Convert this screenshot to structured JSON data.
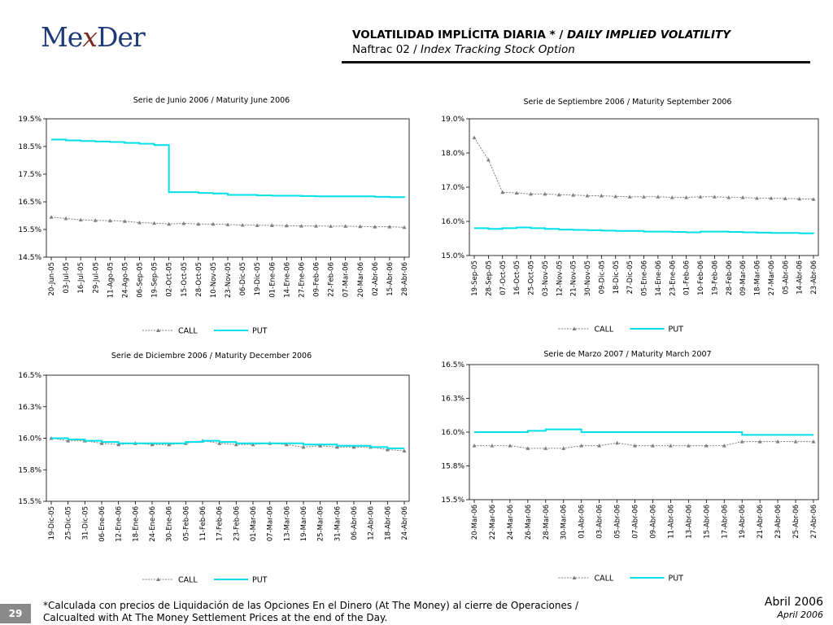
{
  "header": {
    "logo_text_left": "Me",
    "logo_text_x": "x",
    "logo_text_right": "Der",
    "title_es": "VOLATILIDAD IMPLÍCITA DIARIA * / ",
    "title_en": "DAILY IMPLIED VOLATILITY",
    "subtitle_es": "Naftrac 02 / ",
    "subtitle_en": "Index Tracking Stock Option"
  },
  "footer": {
    "note_line1": "*Calculada con precios de Liquidación de las Opciones En el Dinero (At The Money) al cierre de Operaciones /",
    "note_line2": "Calcualted with At The Money Settlement Prices at the end of the Day.",
    "page_number": "29",
    "date_es": "Abril 2006",
    "date_en": "April 2006"
  },
  "colors": {
    "call": "#7f7f7f",
    "put": "#00e0e8",
    "title_bar": "#111111"
  },
  "chart_data": [
    {
      "type": "line",
      "title": "Serie de Junio 2006 / Maturity June 2006",
      "categories": [
        "20-Jun-05",
        "03-Jul-05",
        "16-Jul-05",
        "29-Jul-05",
        "11-Ago-05",
        "24-Ago-05",
        "06-Sep-05",
        "19-Sep-05",
        "02-Oct-05",
        "15-Oct-05",
        "28-Oct-05",
        "10-Nov-05",
        "23-Nov-05",
        "06-Dic-05",
        "19-Dic-05",
        "01-Ene-06",
        "14-Ene-06",
        "27-Ene-06",
        "09-Feb-06",
        "22-Feb-06",
        "07-Mar-06",
        "20-Mar-06",
        "02-Abr-06",
        "15-Abr-06",
        "28-Abr-06"
      ],
      "y_ticks": [
        "14.5%",
        "15.5%",
        "16.5%",
        "17.5%",
        "18.5%",
        "19.5%"
      ],
      "ylim": [
        14.5,
        19.5
      ],
      "legend": [
        "CALL",
        "PUT"
      ],
      "series": [
        {
          "name": "CALL",
          "values": [
            15.95,
            15.9,
            15.85,
            15.83,
            15.82,
            15.8,
            15.75,
            15.73,
            15.7,
            15.72,
            15.7,
            15.7,
            15.68,
            15.66,
            15.65,
            15.65,
            15.64,
            15.63,
            15.63,
            15.62,
            15.62,
            15.61,
            15.6,
            15.6,
            15.58
          ]
        },
        {
          "name": "PUT",
          "values": [
            18.75,
            18.72,
            18.7,
            18.68,
            18.66,
            18.63,
            18.6,
            18.55,
            16.85,
            16.85,
            16.82,
            16.8,
            16.75,
            16.75,
            16.73,
            16.72,
            16.72,
            16.71,
            16.7,
            16.7,
            16.7,
            16.7,
            16.68,
            16.67,
            16.65
          ]
        }
      ]
    },
    {
      "type": "line",
      "title": "Serie de Septiembre 2006 / Maturity September 2006",
      "categories": [
        "19-Sep-05",
        "28-Sep-05",
        "07-Oct-05",
        "16-Oct-05",
        "25-Oct-05",
        "03-Nov-05",
        "12-Nov-05",
        "21-Nov-05",
        "30-Nov-05",
        "09-Dic-05",
        "18-Dic-05",
        "27-Dic-05",
        "05-Ene-06",
        "14-Ene-06",
        "23-Ene-06",
        "01-Feb-06",
        "10-Feb-06",
        "19-Feb-06",
        "28-Feb-06",
        "09-Mar-06",
        "18-Mar-06",
        "27-Mar-06",
        "05-Abr-06",
        "14-Abr-06",
        "23-Abr-06"
      ],
      "y_ticks": [
        "15.0%",
        "16.0%",
        "17.0%",
        "18.0%",
        "19.0%"
      ],
      "ylim": [
        15.0,
        19.0
      ],
      "legend": [
        "CALL",
        "PUT"
      ],
      "series": [
        {
          "name": "CALL",
          "values": [
            18.45,
            17.8,
            16.85,
            16.83,
            16.8,
            16.8,
            16.78,
            16.77,
            16.75,
            16.75,
            16.73,
            16.72,
            16.72,
            16.72,
            16.7,
            16.7,
            16.72,
            16.72,
            16.7,
            16.7,
            16.68,
            16.68,
            16.67,
            16.66,
            16.65
          ]
        },
        {
          "name": "PUT",
          "values": [
            15.8,
            15.78,
            15.8,
            15.82,
            15.8,
            15.78,
            15.76,
            15.75,
            15.74,
            15.73,
            15.72,
            15.72,
            15.7,
            15.7,
            15.69,
            15.68,
            15.7,
            15.7,
            15.69,
            15.68,
            15.67,
            15.66,
            15.66,
            15.65,
            15.64
          ]
        }
      ]
    },
    {
      "type": "line",
      "title": "Serie de Diciembre 2006 / Maturity December 2006",
      "categories": [
        "19-Dic-05",
        "25-Dic-05",
        "31-Dic-05",
        "06-Ene-06",
        "12-Ene-06",
        "18-Ene-06",
        "24-Ene-06",
        "30-Ene-06",
        "05-Feb-06",
        "11-Feb-06",
        "17-Feb-06",
        "23-Feb-06",
        "01-Mar-06",
        "07-Mar-06",
        "13-Mar-06",
        "19-Mar-06",
        "25-Mar-06",
        "31-Mar-06",
        "06-Abr-06",
        "12-Abr-06",
        "18-Abr-06",
        "24-Abr-06"
      ],
      "y_ticks": [
        "15.5%",
        "15.8%",
        "16.0%",
        "16.3%",
        "16.5%"
      ],
      "ylim": [
        15.5,
        16.5
      ],
      "legend": [
        "CALL",
        "PUT"
      ],
      "series": [
        {
          "name": "CALL",
          "values": [
            16.0,
            15.98,
            15.98,
            15.96,
            15.95,
            15.96,
            15.95,
            15.95,
            15.96,
            15.98,
            15.96,
            15.95,
            15.95,
            15.96,
            15.95,
            15.93,
            15.94,
            15.93,
            15.93,
            15.93,
            15.91,
            15.9
          ]
        },
        {
          "name": "PUT",
          "values": [
            16.0,
            15.99,
            15.98,
            15.97,
            15.96,
            15.96,
            15.96,
            15.96,
            15.97,
            15.98,
            15.97,
            15.96,
            15.96,
            15.96,
            15.96,
            15.95,
            15.95,
            15.94,
            15.94,
            15.93,
            15.92,
            15.92
          ]
        }
      ]
    },
    {
      "type": "line",
      "title": "Serie de Marzo 2007 / Maturity March 2007",
      "categories": [
        "20-Mar-06",
        "22-Mar-06",
        "24-Mar-06",
        "26-Mar-06",
        "28-Mar-06",
        "30-Mar-06",
        "01-Abr-06",
        "03-Abr-06",
        "05-Abr-06",
        "07-Abr-06",
        "09-Abr-06",
        "11-Abr-06",
        "13-Abr-06",
        "15-Abr-06",
        "17-Abr-06",
        "19-Abr-06",
        "21-Abr-06",
        "23-Abr-06",
        "25-Abr-06",
        "27-Abr-06"
      ],
      "y_ticks": [
        "15.5%",
        "15.8%",
        "16.0%",
        "16.3%",
        "16.5%"
      ],
      "ylim": [
        15.5,
        16.5
      ],
      "legend": [
        "CALL",
        "PUT"
      ],
      "series": [
        {
          "name": "CALL",
          "values": [
            15.9,
            15.9,
            15.9,
            15.88,
            15.88,
            15.88,
            15.9,
            15.9,
            15.92,
            15.9,
            15.9,
            15.9,
            15.9,
            15.9,
            15.9,
            15.93,
            15.93,
            15.93,
            15.93,
            15.93
          ]
        },
        {
          "name": "PUT",
          "values": [
            16.0,
            16.0,
            16.0,
            16.01,
            16.02,
            16.02,
            16.0,
            16.0,
            16.0,
            16.0,
            16.0,
            16.0,
            16.0,
            16.0,
            16.0,
            15.98,
            15.98,
            15.98,
            15.98,
            15.98
          ]
        }
      ]
    }
  ]
}
